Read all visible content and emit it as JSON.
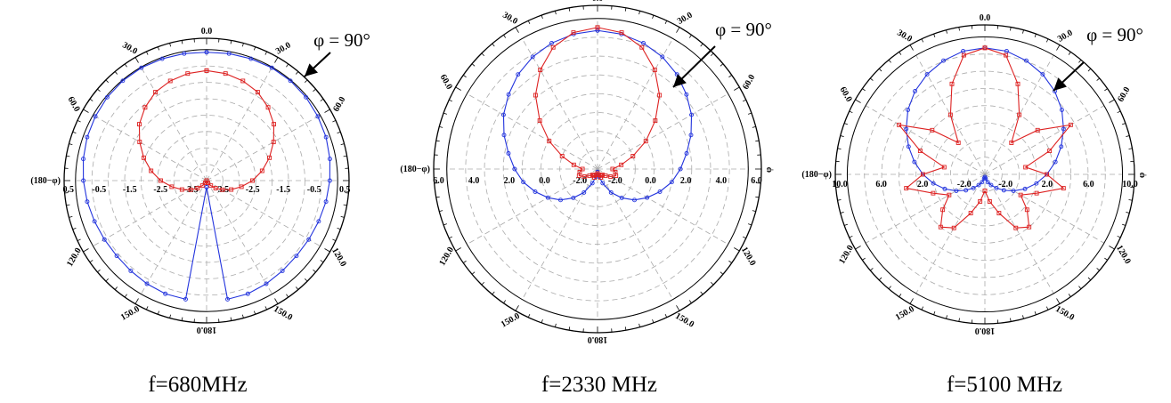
{
  "chart_data": [
    {
      "type": "polar",
      "caption": "f=680MHz",
      "callout": "φ = 90°",
      "angle_labels": [
        "0.0",
        "30.0",
        "60.0",
        "120.0",
        "150.0",
        "180.0"
      ],
      "side_label_left": "(180−φ)",
      "radial_tick_labels": [
        "0.5",
        "-0.5",
        "-1.5",
        "-2.5",
        "-3.5",
        "-3.5",
        "-2.5",
        "-1.5",
        "-0.5",
        "0.5"
      ],
      "rlim": [
        -4.5,
        0.5
      ],
      "series": [
        {
          "color": "#2233dd",
          "marker": "circle",
          "r_norm": [
            0.98,
            0.985,
            0.99,
            0.995,
            0.995,
            0.99,
            0.98,
            0.97,
            0.955,
            0.94,
            0.925,
            0.91,
            0.9,
            0.895,
            0.9,
            0.91,
            0.92,
            0.92,
            0.05
          ]
        },
        {
          "color": "#dd2222",
          "marker": "square",
          "r_norm": [
            0.84,
            0.83,
            0.81,
            0.78,
            0.73,
            0.67,
            0.59,
            0.51,
            0.43,
            0.35,
            0.27,
            0.2,
            0.14,
            0.09,
            0.05,
            0.02,
            0,
            0,
            0
          ]
        }
      ]
    },
    {
      "type": "polar",
      "caption": "f=2330 MHz",
      "callout": "φ = 90°",
      "angle_labels": [
        "0.0",
        "30.0",
        "60.0",
        "120.0",
        "150.0",
        "180.0"
      ],
      "side_label_left": "(180−φ)",
      "side_label_right": "φ",
      "radial_tick_labels": [
        "6.0",
        "4.0",
        "2.0",
        "0.0",
        "-2.0",
        "-2.0",
        "0.0",
        "2.0",
        "4.0",
        "6.0"
      ],
      "rlim": [
        -4.0,
        6.0
      ],
      "series": [
        {
          "color": "#2233dd",
          "marker": "circle",
          "r_norm": [
            0.92,
            0.91,
            0.89,
            0.86,
            0.82,
            0.77,
            0.72,
            0.66,
            0.6,
            0.55,
            0.5,
            0.44,
            0.38,
            0.32,
            0.25,
            0.18,
            0.1,
            0.05,
            0.02
          ]
        },
        {
          "color": "#dd2222",
          "marker": "square",
          "r_norm": [
            0.94,
            0.92,
            0.86,
            0.76,
            0.64,
            0.5,
            0.37,
            0.25,
            0.16,
            0.1,
            0.12,
            0.13,
            0.1,
            0.07,
            0.05,
            0.05,
            0.06,
            0.04,
            0.03
          ]
        }
      ]
    },
    {
      "type": "polar",
      "caption": "f=5100 MHz",
      "callout": "φ = 90°",
      "angle_labels": [
        "0.0",
        "30.0",
        "60.0",
        "120.0",
        "150.0",
        "180.0"
      ],
      "side_label_left": "(180−φ)",
      "side_label_right": "φ",
      "radial_tick_labels": [
        "10.0",
        "6.0",
        "2.0",
        "-2.0",
        "-2.0",
        "2.0",
        "6.0",
        "10.0"
      ],
      "rlim": [
        -6.0,
        10.0
      ],
      "series": [
        {
          "color": "#2233dd",
          "marker": "circle",
          "r_norm": [
            0.92,
            0.91,
            0.88,
            0.84,
            0.79,
            0.73,
            0.66,
            0.59,
            0.52,
            0.45,
            0.38,
            0.31,
            0.24,
            0.18,
            0.13,
            0.09,
            0.06,
            0.03,
            0.02
          ]
        },
        {
          "color": "#dd2222",
          "marker": "square",
          "r_norm": [
            0.92,
            0.88,
            0.7,
            0.5,
            0.3,
            0.5,
            0.72,
            0.5,
            0.3,
            0.45,
            0.58,
            0.4,
            0.3,
            0.4,
            0.5,
            0.45,
            0.3,
            0.2,
            0.12
          ]
        }
      ]
    }
  ]
}
